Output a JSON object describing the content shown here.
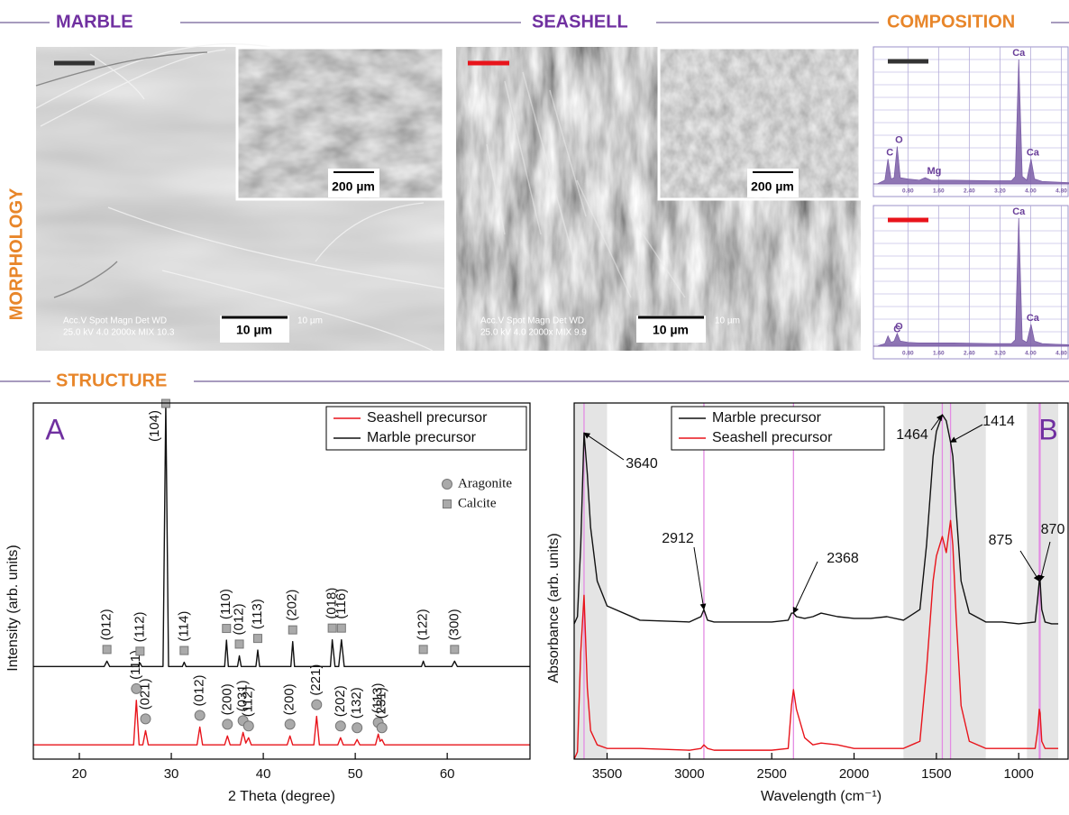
{
  "headers": {
    "marble": "MARBLE",
    "seashell": "SEASHELL",
    "composition": "COMPOSITION",
    "morphology": "MORPHOLOGY",
    "structure": "STRUCTURE"
  },
  "images": [
    {
      "info_top": "Acc.V  Spot Magn    Det  WD",
      "info_bottom": "25.0 kV 4.0  2000x   MIX  10.3",
      "info_scale": "10 µm",
      "scale_bar": "10 µm",
      "inset_scale_bar": "200 µm"
    },
    {
      "info_top": "Acc.V  Spot Magn    Det  WD",
      "info_bottom": "25.0 kV 4.0  2000x   MIX  9.9",
      "info_scale": "10 µm",
      "scale_bar": "10 µm",
      "inset_scale_bar": "200 µm"
    }
  ],
  "chart_data": [
    {
      "type": "area",
      "color": "#7b5ea7",
      "grid": true,
      "x": [
        0,
        0.2,
        0.28,
        0.36,
        0.44,
        0.52,
        0.6,
        0.8,
        1.1,
        1.25,
        1.4,
        2.0,
        3.0,
        3.5,
        3.6,
        3.69,
        3.78,
        3.9,
        4.01,
        4.1,
        4.3,
        5.0
      ],
      "values": [
        0,
        3,
        20,
        4,
        5,
        30,
        5,
        4,
        3,
        5,
        3,
        3,
        2.5,
        2.5,
        6,
        100,
        6,
        3,
        20,
        4,
        2,
        1
      ],
      "xlim": [
        -0.1,
        5.0
      ],
      "ylim": [
        0,
        100
      ],
      "xticks": [
        {
          "value": 0.8,
          "label": "0.80"
        },
        {
          "value": 1.6,
          "label": "1.60"
        },
        {
          "value": 2.4,
          "label": "2.40"
        },
        {
          "value": 3.2,
          "label": "3.20"
        },
        {
          "value": 4.0,
          "label": "4.00"
        },
        {
          "value": 4.8,
          "label": "4.80"
        }
      ],
      "peak_labels": [
        {
          "x": 0.28,
          "text": "C"
        },
        {
          "x": 0.52,
          "text": "O"
        },
        {
          "x": 1.25,
          "text": "Mg"
        },
        {
          "x": 3.69,
          "text": "Ca"
        },
        {
          "x": 4.01,
          "text": "Ca"
        }
      ]
    },
    {
      "type": "area",
      "color": "#7b5ea7",
      "grid": true,
      "x": [
        0,
        0.2,
        0.28,
        0.36,
        0.44,
        0.52,
        0.6,
        0.8,
        1.1,
        1.25,
        1.4,
        2.0,
        3.0,
        3.5,
        3.6,
        3.69,
        3.78,
        3.9,
        4.01,
        4.1,
        4.3,
        5.0
      ],
      "values": [
        0,
        2,
        8,
        3,
        4,
        10,
        4,
        3,
        2.5,
        2.5,
        2.5,
        2.5,
        2,
        2,
        5,
        100,
        5,
        3,
        17,
        4,
        2,
        1
      ],
      "xlim": [
        -0.1,
        5.0
      ],
      "ylim": [
        0,
        100
      ],
      "xticks": [
        {
          "value": 0.8,
          "label": "0.80"
        },
        {
          "value": 1.6,
          "label": "1.60"
        },
        {
          "value": 2.4,
          "label": "2.40"
        },
        {
          "value": 3.2,
          "label": "3.20"
        },
        {
          "value": 4.0,
          "label": "4.00"
        },
        {
          "value": 4.8,
          "label": "4.80"
        }
      ],
      "peak_labels": [
        {
          "x": 0.28,
          "text": "C"
        },
        {
          "x": 0.52,
          "text": "O"
        },
        {
          "x": 3.69,
          "text": "Ca"
        },
        {
          "x": 4.01,
          "text": "Ca"
        }
      ]
    },
    {
      "type": "line",
      "title": "A",
      "xlabel": "2 Theta (degree)",
      "ylabel": "Intensity (arb. units)",
      "xlim": [
        15,
        69
      ],
      "ylim": [
        0,
        100
      ],
      "xticks": [
        20,
        30,
        40,
        50,
        60
      ],
      "legend": "upper right",
      "phases": [
        {
          "name": "Aragonite",
          "marker": "circle"
        },
        {
          "name": "Calcite",
          "marker": "square"
        }
      ],
      "series": [
        {
          "name": "Seashell precursor",
          "color": "#e8141b",
          "marker": "circle",
          "x": [
            15,
            25.9,
            26.2,
            26.5,
            26.9,
            27.2,
            27.5,
            32.8,
            33.1,
            33.4,
            35.8,
            36.1,
            36.4,
            37.5,
            37.8,
            38.1,
            38.4,
            38.7,
            42.6,
            42.9,
            43.2,
            45.5,
            45.8,
            46.1,
            48.1,
            48.4,
            48.7,
            49.9,
            50.2,
            50.5,
            52.2,
            52.5,
            52.7,
            52.9,
            53.2,
            69
          ],
          "values": [
            4,
            4,
            16.5,
            4,
            4,
            8,
            4,
            4,
            9,
            4,
            4,
            6.5,
            4,
            4,
            7.5,
            4.5,
            6,
            4,
            4,
            6.5,
            4,
            4,
            12,
            4,
            4,
            6,
            4,
            4,
            5.5,
            4,
            4,
            7,
            5,
            5.5,
            4,
            4
          ],
          "peak_labels": [
            {
              "x": 26.2,
              "text": "(111)"
            },
            {
              "x": 27.2,
              "text": "(021)"
            },
            {
              "x": 33.1,
              "text": "(012)"
            },
            {
              "x": 36.1,
              "text": "(200)"
            },
            {
              "x": 37.8,
              "text": "(031)"
            },
            {
              "x": 38.4,
              "text": "(112)"
            },
            {
              "x": 42.9,
              "text": "(200)"
            },
            {
              "x": 45.8,
              "text": "(221)"
            },
            {
              "x": 48.4,
              "text": "(202)"
            },
            {
              "x": 50.2,
              "text": "(132)"
            },
            {
              "x": 52.5,
              "text": "(113)"
            },
            {
              "x": 52.9,
              "text": "(231)"
            }
          ]
        },
        {
          "name": "Marble precursor",
          "color": "#111111",
          "marker": "square",
          "x": [
            15,
            22.7,
            23.0,
            23.3,
            26.4,
            26.6,
            26.8,
            29.1,
            29.4,
            29.7,
            31.2,
            31.4,
            31.6,
            35.8,
            36.0,
            36.2,
            37.2,
            37.4,
            37.6,
            39.2,
            39.4,
            39.6,
            43.0,
            43.2,
            43.4,
            47.3,
            47.5,
            47.8,
            48.2,
            48.5,
            48.8,
            57.2,
            57.4,
            57.6,
            60.5,
            60.8,
            61.1,
            69
          ],
          "values": [
            26,
            26,
            27.5,
            26,
            26,
            27,
            26,
            26,
            100,
            26,
            26,
            27.2,
            26,
            26,
            33.4,
            26,
            26,
            29,
            26,
            26,
            30.6,
            26,
            26,
            33,
            26,
            26,
            33.5,
            26,
            26,
            33.5,
            26,
            26,
            27.5,
            26,
            26,
            27.5,
            26,
            26
          ],
          "peak_labels": [
            {
              "x": 23.0,
              "text": "(012)"
            },
            {
              "x": 26.6,
              "text": "(112)"
            },
            {
              "x": 29.4,
              "text": "(104)"
            },
            {
              "x": 31.4,
              "text": "(114)"
            },
            {
              "x": 36.0,
              "text": "(110)"
            },
            {
              "x": 37.4,
              "text": "(012)"
            },
            {
              "x": 39.4,
              "text": "(113)"
            },
            {
              "x": 43.2,
              "text": "(202)"
            },
            {
              "x": 47.5,
              "text": "(018)"
            },
            {
              "x": 48.5,
              "text": "(116)"
            },
            {
              "x": 57.4,
              "text": "(122)"
            },
            {
              "x": 60.8,
              "text": "(300)"
            }
          ]
        }
      ]
    },
    {
      "type": "line",
      "title": "B",
      "xlabel": "Wavelength (cm⁻¹)",
      "ylabel": "Absorbance (arb. units)",
      "xlim": [
        3700,
        700
      ],
      "ylim": [
        0,
        100
      ],
      "xticks": [
        3500,
        3000,
        2500,
        2000,
        1500,
        1000
      ],
      "legend": "upper center",
      "shaded_regions": [
        [
          3700,
          3500
        ],
        [
          1700,
          1200
        ],
        [
          950,
          760
        ]
      ],
      "peak_marks": [
        3640,
        2912,
        2368,
        1464,
        1414,
        875,
        870
      ],
      "x": [
        3700,
        3680,
        3660,
        3640,
        3620,
        3600,
        3560,
        3500,
        3300,
        3000,
        2930,
        2912,
        2890,
        2850,
        2500,
        2400,
        2380,
        2368,
        2350,
        2300,
        2250,
        2200,
        2100,
        2000,
        1900,
        1800,
        1700,
        1600,
        1560,
        1520,
        1500,
        1464,
        1440,
        1414,
        1400,
        1380,
        1350,
        1300,
        1200,
        1100,
        1000,
        900,
        885,
        875,
        870,
        860,
        840,
        800,
        760
      ],
      "series": [
        {
          "name": "Marble precursor",
          "color": "#111111",
          "values": [
            38,
            40,
            60,
            91.6,
            80,
            65,
            50,
            43,
            39,
            38.5,
            40,
            42,
            39,
            38.5,
            38.5,
            39,
            41,
            41,
            40,
            39.5,
            40,
            41,
            40,
            39.5,
            39.5,
            40,
            39,
            42,
            60,
            85,
            92,
            96.7,
            95,
            89,
            85,
            70,
            50,
            41,
            38.5,
            38.5,
            38,
            38.5,
            45,
            50,
            50,
            42,
            38.5,
            38,
            38
          ]
        },
        {
          "name": "Seashell precursor",
          "color": "#e8141b",
          "values": [
            0,
            2,
            30,
            46,
            20,
            8,
            4,
            3,
            3,
            2.5,
            3,
            4,
            3,
            2.5,
            2.5,
            3,
            15,
            19.5,
            14,
            6,
            4,
            4.5,
            4,
            3,
            3,
            3,
            3,
            5,
            25,
            50,
            57,
            62.5,
            58,
            67,
            60,
            40,
            15,
            5,
            3,
            3,
            3,
            3,
            8,
            14,
            13,
            5,
            3,
            3,
            3
          ]
        }
      ]
    }
  ]
}
